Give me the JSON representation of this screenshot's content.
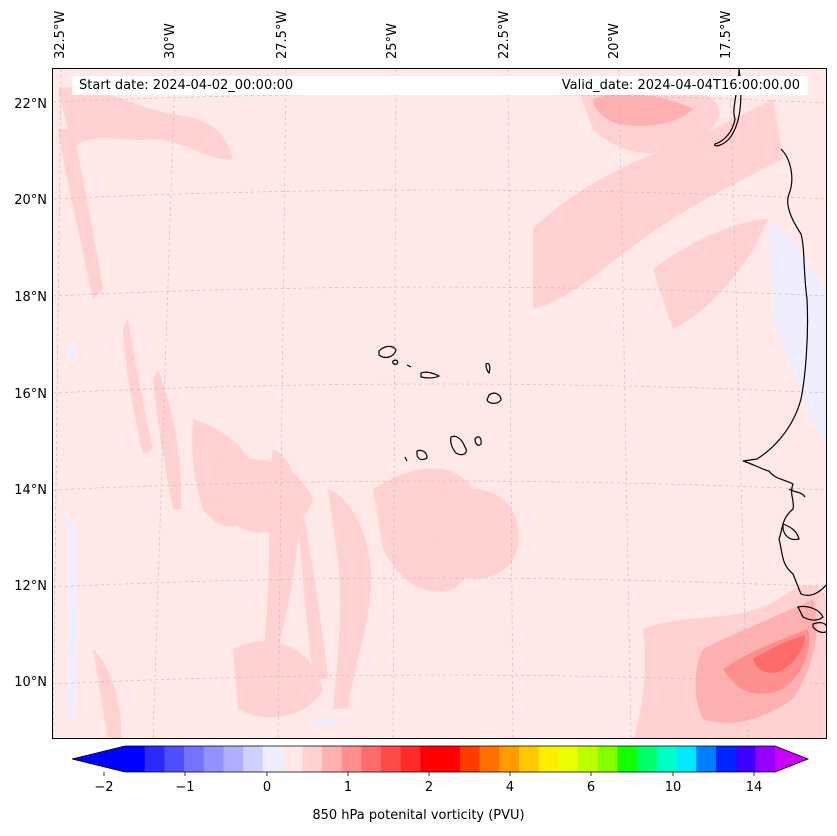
{
  "header": {
    "start_date": "Start date: 2024-04-02_00:00:00",
    "valid_date": "Valid_date: 2024-04-04T16:00:00.00"
  },
  "map": {
    "lon_ticks": [
      "32.5°W",
      "30°W",
      "27.5°W",
      "25°W",
      "22.5°W",
      "20°W",
      "17.5°W"
    ],
    "lat_ticks": [
      "22°N",
      "20°N",
      "18°N",
      "16°N",
      "14°N",
      "12°N",
      "10°N"
    ],
    "coastline_color": "#000000",
    "grid_style": "dashed light gray"
  },
  "colorbar": {
    "label": "850 hPa potenital vorticity (PVU)",
    "tick_labels": [
      "−2",
      "−1",
      "0",
      "1",
      "2",
      "4",
      "6",
      "10",
      "14"
    ],
    "colors": [
      "#0000ff",
      "#2a2aff",
      "#4f4fff",
      "#7373ff",
      "#9191ff",
      "#afafff",
      "#d1d1ff",
      "#eeeeff",
      "#ffe8e8",
      "#ffd1d1",
      "#ffb0b0",
      "#ff8f8f",
      "#ff6b6b",
      "#ff4a4a",
      "#ff2b2b",
      "#ff0000",
      "#ff0000",
      "#ff3c00",
      "#ff7000",
      "#ff9a00",
      "#ffc800",
      "#ffee00",
      "#e8ff00",
      "#bbff00",
      "#84ff00",
      "#11ff00",
      "#00ff6a",
      "#00ffc8",
      "#00e8ff",
      "#0080ff",
      "#0026ff",
      "#3b00ff",
      "#9600ff"
    ],
    "under_color": "#0000ff",
    "over_color": "#cc00ff",
    "extend": "both"
  }
}
